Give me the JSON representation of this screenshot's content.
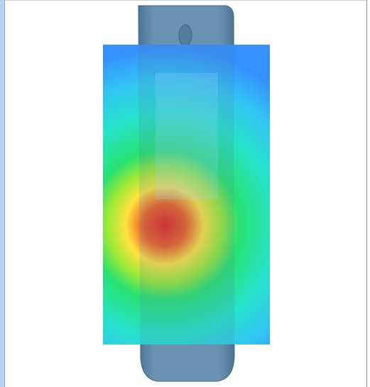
{
  "viewer": {
    "colors": {
      "phone_body": "#5f86a6",
      "phone_edge": "#3e6380",
      "heat_cool": "#2f8cff",
      "heat_mid": "#22e06b",
      "heat_warm": "#ffe23a",
      "heat_hot": "#e51d1d"
    },
    "heatmap_level_peak": 1.0,
    "icons": {
      "speaker_slot": "earpiece-slot-icon"
    }
  },
  "watermarks": {
    "left": "",
    "right": ""
  }
}
